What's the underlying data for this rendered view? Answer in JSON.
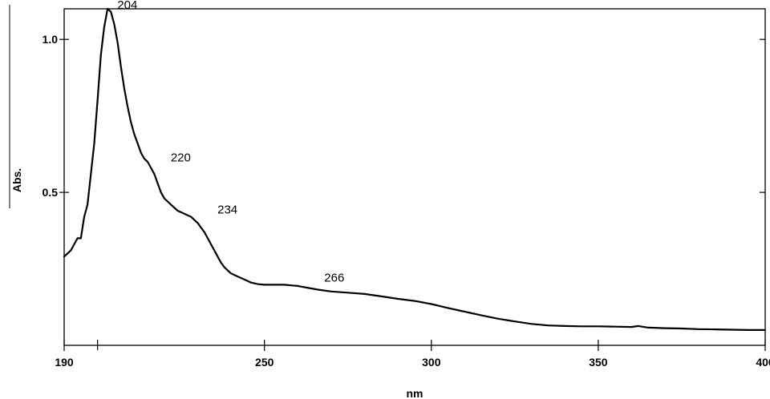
{
  "chart_data": {
    "type": "line",
    "title": "",
    "xlabel": "nm",
    "ylabel": "Abs.",
    "xlim": [
      190,
      400
    ],
    "ylim": [
      0.0,
      1.1
    ],
    "x_ticks": [
      190,
      250,
      300,
      350,
      400
    ],
    "x_tick_labels": [
      "190",
      "250",
      "300",
      "350",
      "400"
    ],
    "y_ticks": [
      0.5,
      1.0
    ],
    "y_tick_labels": [
      "0.5",
      "1.0"
    ],
    "grid": false,
    "series": [
      {
        "x": [
          190,
          192,
          194,
          195,
          196,
          197,
          198,
          199,
          200,
          201,
          202,
          203,
          204,
          205,
          206,
          207,
          208,
          209,
          210,
          211,
          212,
          213,
          214,
          215,
          216,
          217,
          218,
          219,
          220,
          221,
          222,
          223,
          224,
          225,
          226,
          227,
          228,
          229,
          230,
          231,
          232,
          233,
          234,
          235,
          236,
          237,
          238,
          239,
          240,
          242,
          244,
          246,
          248,
          250,
          252,
          254,
          256,
          258,
          260,
          262,
          264,
          266,
          270,
          275,
          280,
          285,
          290,
          295,
          300,
          305,
          310,
          315,
          320,
          325,
          330,
          335,
          340,
          345,
          350,
          355,
          360,
          362,
          365,
          370,
          375,
          380,
          385,
          390,
          395,
          400
        ],
        "y": [
          0.29,
          0.31,
          0.35,
          0.35,
          0.42,
          0.46,
          0.56,
          0.66,
          0.8,
          0.95,
          1.04,
          1.1,
          1.09,
          1.05,
          0.99,
          0.91,
          0.84,
          0.78,
          0.73,
          0.69,
          0.66,
          0.63,
          0.61,
          0.6,
          0.58,
          0.56,
          0.53,
          0.5,
          0.48,
          0.47,
          0.46,
          0.45,
          0.44,
          0.435,
          0.43,
          0.425,
          0.42,
          0.41,
          0.4,
          0.385,
          0.37,
          0.35,
          0.33,
          0.31,
          0.29,
          0.27,
          0.255,
          0.245,
          0.235,
          0.225,
          0.215,
          0.205,
          0.2,
          0.198,
          0.198,
          0.198,
          0.198,
          0.196,
          0.194,
          0.19,
          0.186,
          0.182,
          0.176,
          0.172,
          0.168,
          0.16,
          0.152,
          0.145,
          0.135,
          0.122,
          0.11,
          0.098,
          0.087,
          0.078,
          0.07,
          0.065,
          0.063,
          0.062,
          0.062,
          0.061,
          0.06,
          0.063,
          0.058,
          0.056,
          0.055,
          0.053,
          0.052,
          0.051,
          0.05,
          0.05
        ]
      }
    ],
    "annotations": [
      {
        "text": "204",
        "x": 204,
        "y": 1.09
      },
      {
        "text": "220",
        "x": 220,
        "y": 0.59
      },
      {
        "text": "234",
        "x": 234,
        "y": 0.42
      },
      {
        "text": "266",
        "x": 266,
        "y": 0.198
      }
    ]
  }
}
